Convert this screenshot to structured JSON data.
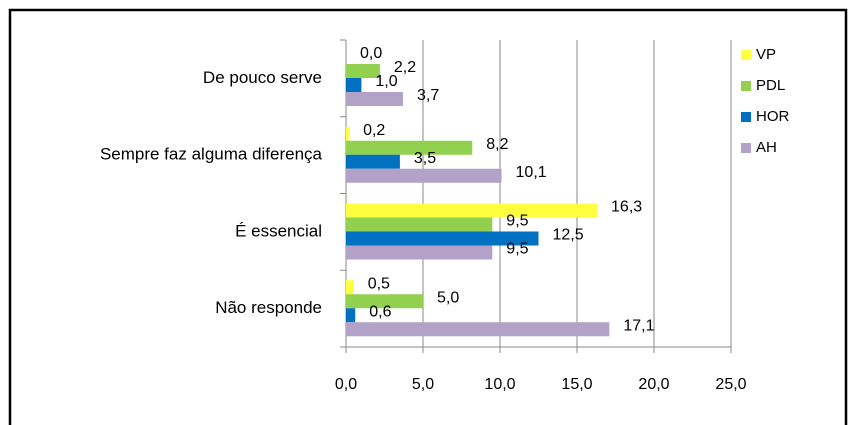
{
  "chart_data": {
    "type": "barh",
    "categories": [
      "De pouco serve",
      "Sempre faz alguma diferença",
      "É essencial",
      "Não responde"
    ],
    "series": [
      {
        "name": "VP",
        "color": "#ffff40",
        "values": [
          0.0,
          0.2,
          16.3,
          0.5
        ],
        "value_labels": [
          "0,0",
          "0,2",
          "16,3",
          "0,5"
        ]
      },
      {
        "name": "PDL",
        "color": "#92d050",
        "values": [
          2.2,
          8.2,
          9.5,
          5.0
        ],
        "value_labels": [
          "2,2",
          "8,2",
          "9,5",
          "5,0"
        ]
      },
      {
        "name": "HOR",
        "color": "#0070c0",
        "values": [
          1.0,
          3.5,
          12.5,
          0.6
        ],
        "value_labels": [
          "1,0",
          "3,5",
          "12,5",
          "0,6"
        ]
      },
      {
        "name": "AH",
        "color": "#b3a2c7",
        "values": [
          3.7,
          10.1,
          9.5,
          17.1
        ],
        "value_labels": [
          "3,7",
          "10,1",
          "9,5",
          "17,1"
        ]
      }
    ],
    "xlim": [
      0,
      25
    ],
    "xticks": [
      {
        "value": 0,
        "label": "0,0"
      },
      {
        "value": 5,
        "label": "5,0"
      },
      {
        "value": 10,
        "label": "10,0"
      },
      {
        "value": 15,
        "label": "15,0"
      },
      {
        "value": 20,
        "label": "20,0"
      },
      {
        "value": 25,
        "label": "25,0"
      }
    ],
    "grid": true,
    "legend": "right"
  }
}
